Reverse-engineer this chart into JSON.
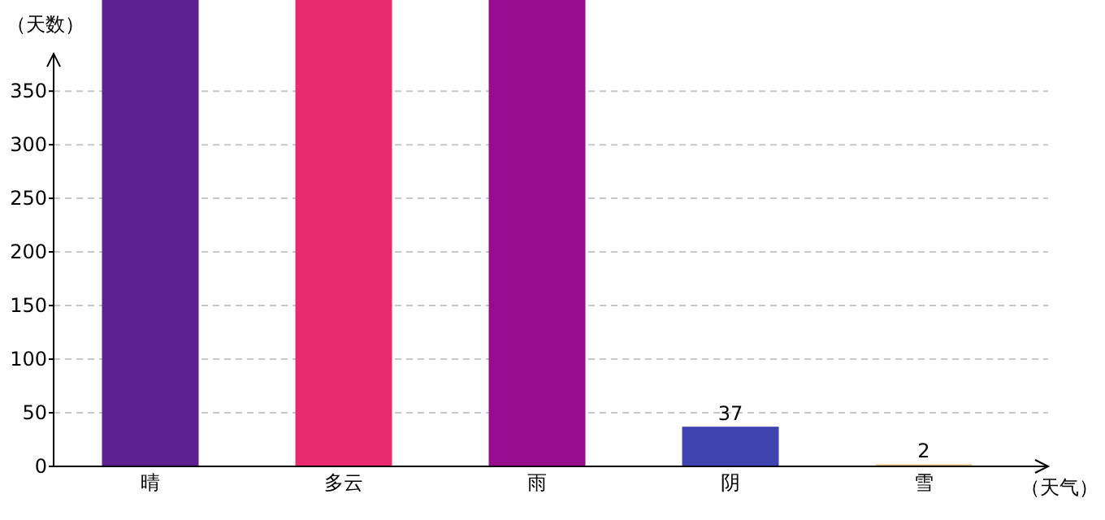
{
  "chart_data": {
    "type": "bar",
    "xlabel": "（天气）",
    "ylabel": "（天数）",
    "categories": [
      "晴",
      "多云",
      "雨",
      "阴",
      "雪"
    ],
    "values": [
      435,
      435,
      435,
      37,
      2
    ],
    "colors": [
      "#5d2190",
      "#ea2a6e",
      "#960d8f",
      "#3f43b0",
      "#e6c490"
    ],
    "value_labels": [
      null,
      null,
      null,
      "37",
      "2"
    ],
    "ylim": [
      0,
      435
    ],
    "yticks": [
      0,
      50,
      100,
      150,
      200,
      250,
      300,
      350
    ],
    "grid": "y"
  }
}
